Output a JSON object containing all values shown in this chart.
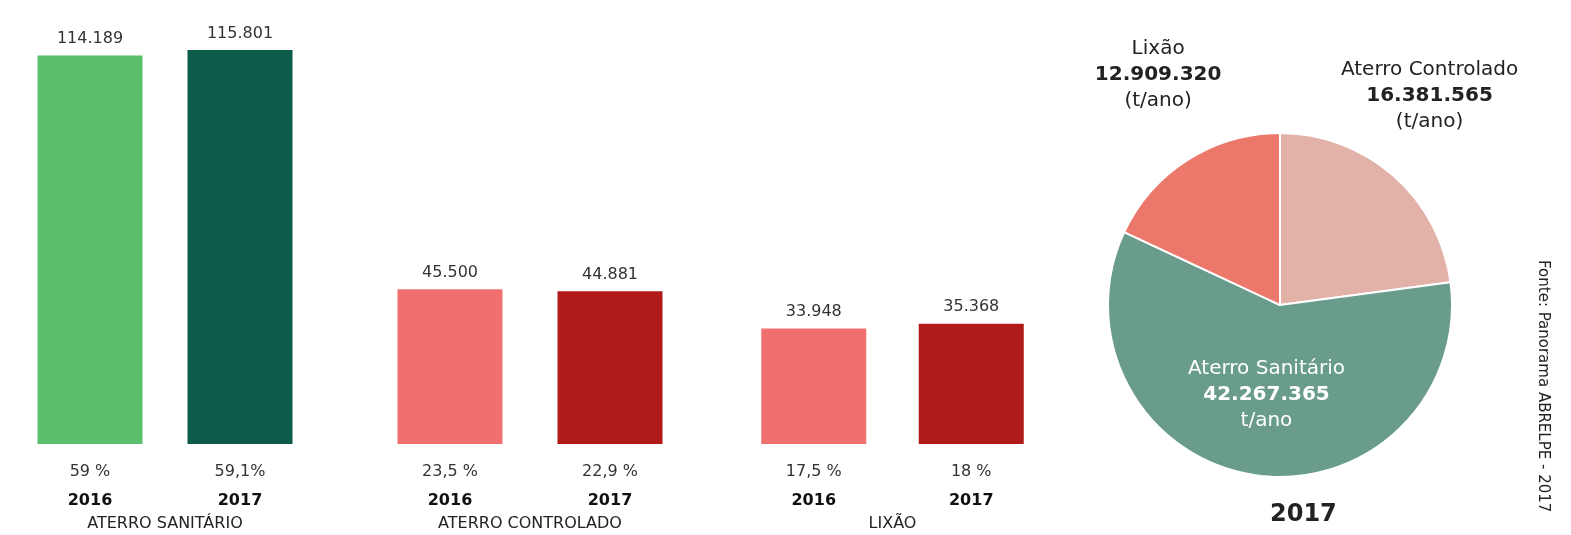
{
  "chart_data": [
    {
      "type": "bar",
      "xlabel": "ATERRO SANITÁRIO",
      "categories": [
        "2016",
        "2017"
      ],
      "values": [
        114189,
        115801
      ],
      "colors": [
        "#5cbf6e",
        "#0d5c4a"
      ],
      "value_labels": [
        "114.189",
        "115.801"
      ],
      "annotations": [
        {
          "text": "59 %",
          "x": "2016",
          "y": 0
        },
        {
          "text": "59,1%",
          "x": "2017",
          "y": 0
        }
      ]
    },
    {
      "type": "bar",
      "xlabel": "ATERRO CONTROLADO",
      "categories": [
        "2016",
        "2017"
      ],
      "values": [
        45500,
        44881
      ],
      "colors": [
        "#f07070",
        "#b01a1a"
      ],
      "value_labels": [
        "45.500",
        "44.881"
      ],
      "annotations": [
        {
          "text": "23,5 %",
          "x": "2016",
          "y": 0
        },
        {
          "text": "22,9 %",
          "x": "2017",
          "y": 0
        }
      ]
    },
    {
      "type": "bar",
      "xlabel": "LIXÃO",
      "categories": [
        "2016",
        "2017"
      ],
      "values": [
        33948,
        35368
      ],
      "colors": [
        "#f07070",
        "#b01a1a"
      ],
      "value_labels": [
        "33.948",
        "35.368"
      ],
      "annotations": [
        {
          "text": "17,5 %",
          "x": "2016",
          "y": 0
        },
        {
          "text": "18 %",
          "x": "2017",
          "y": 0
        }
      ]
    },
    {
      "type": "pie",
      "title": "2017",
      "categories": [
        "Aterro Controlado",
        "Aterro Sanitário",
        "Lixão"
      ],
      "values": [
        16381565,
        42267365,
        12909320
      ],
      "colors": [
        "#e2b2a8",
        "#6a9c8e",
        "#ec786c"
      ],
      "value_labels": [
        "16.381.565\n(t/ano)",
        "42.267.365\nt/ano",
        "12.909.320\n(t/ano)"
      ],
      "annotations": [
        "Fonte: Panorama ABRELPE - 2017"
      ]
    }
  ]
}
